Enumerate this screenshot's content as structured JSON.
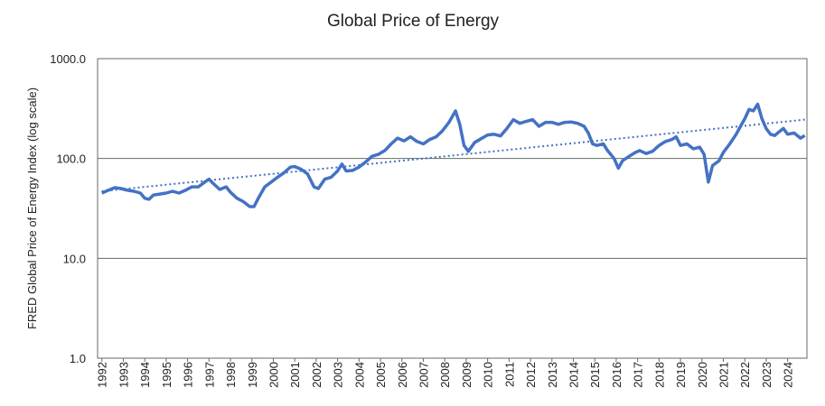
{
  "chart_data": {
    "type": "line",
    "title": "Global Price of Energy",
    "y_label": "FRED Global Price of Energy Index (log scale)",
    "y_scale": "log",
    "grid": true,
    "xlim": [
      1991.8,
      2024.9
    ],
    "xticks": [
      1992,
      1993,
      1994,
      1995,
      1996,
      1997,
      1998,
      1999,
      2000,
      2001,
      2002,
      2003,
      2004,
      2005,
      2006,
      2007,
      2008,
      2009,
      2010,
      2011,
      2012,
      2013,
      2014,
      2015,
      2016,
      2017,
      2018,
      2019,
      2020,
      2021,
      2022,
      2023,
      2024
    ],
    "ylim": [
      1,
      1000
    ],
    "yticks": [
      {
        "value": 1,
        "label": "1.0"
      },
      {
        "value": 10,
        "label": "10.0"
      },
      {
        "value": 100,
        "label": "100.0"
      },
      {
        "value": 1000,
        "label": "1000.0"
      }
    ],
    "series": [
      {
        "color": "#4472c4",
        "x": [
          1992.0,
          1992.3,
          1992.6,
          1992.9,
          1993.2,
          1993.5,
          1993.8,
          1994.0,
          1994.2,
          1994.4,
          1994.7,
          1995.0,
          1995.3,
          1995.6,
          1995.9,
          1996.2,
          1996.5,
          1996.8,
          1997.0,
          1997.2,
          1997.5,
          1997.8,
          1998.0,
          1998.3,
          1998.6,
          1998.9,
          1999.1,
          1999.3,
          1999.6,
          1999.9,
          2000.2,
          2000.5,
          2000.8,
          2001.0,
          2001.3,
          2001.6,
          2001.9,
          2002.1,
          2002.4,
          2002.7,
          2003.0,
          2003.2,
          2003.4,
          2003.7,
          2004.0,
          2004.3,
          2004.6,
          2004.9,
          2005.2,
          2005.5,
          2005.8,
          2006.1,
          2006.4,
          2006.7,
          2007.0,
          2007.3,
          2007.6,
          2007.9,
          2008.2,
          2008.5,
          2008.7,
          2008.9,
          2009.1,
          2009.4,
          2009.7,
          2010.0,
          2010.3,
          2010.6,
          2010.9,
          2011.2,
          2011.5,
          2011.8,
          2012.1,
          2012.4,
          2012.7,
          2013.0,
          2013.3,
          2013.6,
          2013.9,
          2014.2,
          2014.5,
          2014.7,
          2014.9,
          2015.1,
          2015.4,
          2015.6,
          2015.9,
          2016.1,
          2016.3,
          2016.6,
          2016.9,
          2017.1,
          2017.4,
          2017.7,
          2018.0,
          2018.3,
          2018.6,
          2018.8,
          2019.0,
          2019.3,
          2019.6,
          2019.9,
          2020.1,
          2020.3,
          2020.5,
          2020.8,
          2021.0,
          2021.3,
          2021.6,
          2021.8,
          2022.0,
          2022.2,
          2022.4,
          2022.6,
          2022.8,
          2023.0,
          2023.2,
          2023.4,
          2023.6,
          2023.8,
          2024.0,
          2024.3,
          2024.6,
          2024.8
        ],
        "values": [
          45,
          48,
          51,
          50,
          48,
          47,
          45,
          40,
          39,
          43,
          44,
          45,
          47,
          45,
          48,
          52,
          52,
          58,
          62,
          56,
          49,
          52,
          46,
          40,
          37,
          33,
          33,
          40,
          52,
          58,
          65,
          72,
          82,
          83,
          78,
          70,
          52,
          50,
          62,
          65,
          75,
          88,
          75,
          76,
          82,
          92,
          105,
          110,
          120,
          140,
          160,
          150,
          165,
          148,
          140,
          155,
          165,
          190,
          230,
          300,
          220,
          135,
          118,
          145,
          158,
          172,
          175,
          168,
          200,
          245,
          225,
          235,
          245,
          210,
          230,
          230,
          220,
          230,
          232,
          225,
          210,
          180,
          140,
          135,
          140,
          120,
          100,
          80,
          95,
          105,
          115,
          120,
          112,
          118,
          135,
          148,
          155,
          165,
          135,
          140,
          125,
          130,
          110,
          58,
          85,
          95,
          115,
          140,
          175,
          210,
          250,
          310,
          300,
          350,
          250,
          200,
          175,
          170,
          185,
          200,
          175,
          180,
          160,
          170
        ]
      }
    ],
    "trendline": {
      "color": "#4472c4",
      "x": [
        1992.0,
        2024.8
      ],
      "values": [
        47,
        245
      ]
    }
  }
}
